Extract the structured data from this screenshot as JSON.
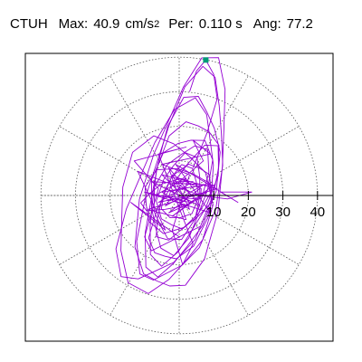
{
  "header": {
    "station": "CTUH",
    "max_label": "Max:",
    "max_value": "40.9",
    "max_unit": "cm/s",
    "max_unit_exp": "2",
    "per_label": "Per:",
    "per_value": "0.110 s",
    "ang_label": "Ang:",
    "ang_value": "77.2"
  },
  "chart_data": {
    "type": "polar-hodogram",
    "title": "CTUH",
    "max_accel": 40.9,
    "max_accel_unit": "cm/s2",
    "period_s": 0.11,
    "angle_deg": 77.2,
    "radial_axis": {
      "range": [
        0,
        44
      ],
      "ticks": [
        10,
        20,
        30,
        40
      ],
      "tick_labels": [
        "10",
        "20",
        "30",
        "40"
      ],
      "direction": "east"
    },
    "grid": {
      "rings": [
        10,
        20,
        30,
        40
      ],
      "spoke_angles_deg": [
        0,
        30,
        60,
        90,
        120,
        150,
        180,
        210,
        240,
        270,
        300,
        330
      ],
      "style": "dotted"
    },
    "trace_color": "#9400d3",
    "peak_marker": {
      "x": 7.7,
      "y": 39.2,
      "color": "#009b77"
    },
    "trace_loops": [
      {
        "center": [
          0.0,
          0.0
        ],
        "semi_axes": [
          3,
          2
        ],
        "rotation_deg": 10,
        "points": 8
      },
      {
        "center": [
          0.5,
          0.5
        ],
        "semi_axes": [
          8,
          5
        ],
        "rotation_deg": 75,
        "points": 10
      },
      {
        "center": [
          0.4,
          0.8
        ],
        "semi_axes": [
          11,
          6
        ],
        "rotation_deg": 78,
        "points": 11
      },
      {
        "center": [
          0.6,
          1.0
        ],
        "semi_axes": [
          14,
          7
        ],
        "rotation_deg": 72,
        "points": 12
      },
      {
        "center": [
          0.2,
          1.0
        ],
        "semi_axes": [
          17,
          8
        ],
        "rotation_deg": 77,
        "points": 13
      },
      {
        "center": [
          0.8,
          2.0
        ],
        "semi_axes": [
          21,
          8.5
        ],
        "rotation_deg": 74,
        "points": 14
      },
      {
        "center": [
          0.8,
          3.0
        ],
        "semi_axes": [
          26,
          9
        ],
        "rotation_deg": 77,
        "points": 15
      },
      {
        "center": [
          1.2,
          4.0
        ],
        "semi_axes": [
          31,
          10
        ],
        "rotation_deg": 76,
        "points": 16
      },
      {
        "center": [
          1.5,
          4.0
        ],
        "semi_axes": [
          34,
          11
        ],
        "rotation_deg": 78,
        "points": 16
      },
      {
        "center": [
          -1.0,
          -1.0
        ],
        "semi_axes": [
          10,
          9
        ],
        "rotation_deg": 30,
        "points": 11
      },
      {
        "center": [
          -2.0,
          0.0
        ],
        "semi_axes": [
          9,
          4
        ],
        "rotation_deg": 15,
        "points": 10
      },
      {
        "center": [
          1.0,
          -1.5
        ],
        "semi_axes": [
          12,
          6
        ],
        "rotation_deg": 60,
        "points": 11
      },
      {
        "center": [
          -5.0,
          -5.0
        ],
        "semi_axes": [
          22,
          13
        ],
        "rotation_deg": 82,
        "points": 14
      },
      {
        "center": [
          -3.0,
          0.0
        ],
        "semi_axes": [
          27,
          11
        ],
        "rotation_deg": 70,
        "points": 15
      },
      {
        "center": [
          2.0,
          -3.0
        ],
        "semi_axes": [
          18,
          7
        ],
        "rotation_deg": 65,
        "points": 13
      }
    ],
    "trace_path": [
      [
        0,
        0
      ],
      [
        -6,
        3
      ],
      [
        4,
        -2
      ],
      [
        -3,
        -5
      ],
      [
        6,
        2
      ],
      [
        -2,
        6
      ],
      [
        3,
        -4
      ],
      [
        -5,
        1
      ],
      [
        7,
        3
      ],
      [
        -4,
        -3
      ],
      [
        2,
        5
      ],
      [
        -7,
        0
      ],
      [
        5,
        -1
      ],
      [
        -1,
        4
      ],
      [
        4,
        4
      ],
      [
        -6,
        -2
      ],
      [
        8,
        1
      ],
      [
        -2,
        -6
      ],
      [
        10,
        3
      ],
      [
        -8,
        4
      ],
      [
        6,
        -3
      ],
      [
        -3,
        8
      ],
      [
        2,
        -7
      ],
      [
        -9,
        -4
      ],
      [
        11,
        2
      ],
      [
        -5,
        6
      ],
      [
        3,
        -2
      ],
      [
        -10,
        1
      ],
      [
        9,
        -5
      ],
      [
        -1,
        9
      ],
      [
        17,
        -2
      ],
      [
        12,
        1
      ],
      [
        21,
        1
      ],
      [
        14,
        -1
      ],
      [
        6,
        0
      ],
      [
        -12,
        7
      ],
      [
        -4,
        -10
      ],
      [
        -14,
        -2
      ],
      [
        0,
        -12
      ],
      [
        6,
        -9
      ],
      [
        -8,
        -16
      ],
      [
        -10,
        -12
      ],
      [
        -6,
        2
      ],
      [
        -13,
        10
      ],
      [
        2,
        14
      ],
      [
        -6,
        12
      ],
      [
        4,
        -14
      ],
      [
        1,
        -20
      ],
      [
        -2,
        -10
      ],
      [
        3,
        6
      ],
      [
        -5,
        9
      ],
      [
        9,
        12
      ],
      [
        4,
        16
      ],
      [
        7,
        10
      ],
      [
        0,
        4
      ]
    ]
  }
}
